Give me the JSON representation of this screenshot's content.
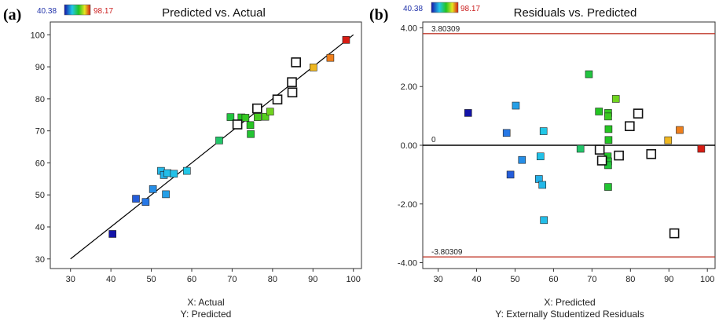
{
  "colors": {
    "low": "#1414a8",
    "high": "#d81c14",
    "refline": "#c0392b",
    "fitline": "#000000"
  },
  "chart_data": [
    {
      "type": "scatter",
      "panel": "(a)",
      "title": "Predicted vs. Actual",
      "xlabel": "X: Actual",
      "ylabel": "Y: Predicted",
      "xlim": [
        25,
        102
      ],
      "ylim": [
        27,
        104
      ],
      "xticks": [
        "30",
        "40",
        "50",
        "60",
        "70",
        "80",
        "90",
        "100"
      ],
      "yticks": [
        "30",
        "40",
        "50",
        "60",
        "70",
        "80",
        "90",
        "100"
      ],
      "color_scale": {
        "min_label": "40.38",
        "max_label": "98.17",
        "min": 40.38,
        "max": 98.17
      },
      "reference_line": {
        "x": [
          30,
          100
        ],
        "y": [
          30,
          100
        ]
      },
      "points": [
        {
          "x": 40.4,
          "y": 37.8,
          "c": 40.38
        },
        {
          "x": 46.2,
          "y": 48.8,
          "c": 46.0
        },
        {
          "x": 48.6,
          "y": 47.8,
          "c": 48.5
        },
        {
          "x": 50.4,
          "y": 51.8,
          "c": 51.0
        },
        {
          "x": 52.4,
          "y": 57.5,
          "c": 56.0
        },
        {
          "x": 53.1,
          "y": 56.2,
          "c": 55.0
        },
        {
          "x": 53.6,
          "y": 50.2,
          "c": 53.0
        },
        {
          "x": 54.0,
          "y": 56.8,
          "c": 56.5
        },
        {
          "x": 55.6,
          "y": 56.6,
          "c": 57.0
        },
        {
          "x": 58.8,
          "y": 57.5,
          "c": 57.8
        },
        {
          "x": 66.8,
          "y": 67.0,
          "c": 67.0
        },
        {
          "x": 69.6,
          "y": 74.3,
          "c": 70.0
        },
        {
          "x": 72.3,
          "y": 74.2,
          "c": 72.3
        },
        {
          "x": 73.3,
          "y": 74.1,
          "c": 73.5
        },
        {
          "x": 74.5,
          "y": 71.8,
          "c": 72.5
        },
        {
          "x": 74.6,
          "y": 69.0,
          "c": 71.0
        },
        {
          "x": 76.3,
          "y": 74.3,
          "c": 75.0
        },
        {
          "x": 78.2,
          "y": 74.4,
          "c": 76.0
        },
        {
          "x": 79.4,
          "y": 76.0,
          "c": 78.0
        },
        {
          "x": 90.1,
          "y": 89.8,
          "c": 90.0
        },
        {
          "x": 94.3,
          "y": 92.8,
          "c": 93.5
        },
        {
          "x": 98.2,
          "y": 98.4,
          "c": 98.17
        },
        {
          "x": 71.3,
          "y": 72.0,
          "c": null
        },
        {
          "x": 76.2,
          "y": 77.0,
          "c": null
        },
        {
          "x": 81.2,
          "y": 79.8,
          "c": null
        },
        {
          "x": 84.8,
          "y": 85.2,
          "c": null
        },
        {
          "x": 84.9,
          "y": 82.0,
          "c": null
        },
        {
          "x": 85.8,
          "y": 91.4,
          "c": null
        }
      ]
    },
    {
      "type": "scatter",
      "panel": "(b)",
      "title": "Residuals vs. Predicted",
      "xlabel": "X: Predicted",
      "ylabel": "Y: Externally Studentized Residuals",
      "xlim": [
        26,
        102
      ],
      "ylim": [
        -4.2,
        4.2
      ],
      "xticks": [
        "30",
        "40",
        "50",
        "60",
        "70",
        "80",
        "90",
        "100"
      ],
      "yticks": [
        "4.00",
        "2.00",
        "0.00",
        "-2.00",
        "-4.00"
      ],
      "ytick_values": [
        4,
        2,
        0,
        -2,
        -4
      ],
      "color_scale": {
        "min_label": "40.38",
        "max_label": "98.17",
        "min": 40.38,
        "max": 98.17
      },
      "limits": [
        {
          "value": 3.80309,
          "label": "3.80309"
        },
        {
          "value": -3.80309,
          "label": "-3.80309"
        }
      ],
      "zero_line": {
        "value": 0,
        "label": "0"
      },
      "points": [
        {
          "x": 37.8,
          "y": 1.1,
          "c": 40.38
        },
        {
          "x": 47.8,
          "y": 0.42,
          "c": 48.5
        },
        {
          "x": 48.8,
          "y": -1.0,
          "c": 46.0
        },
        {
          "x": 50.2,
          "y": 1.35,
          "c": 53.0
        },
        {
          "x": 51.8,
          "y": -0.5,
          "c": 51.0
        },
        {
          "x": 56.2,
          "y": -1.15,
          "c": 55.0
        },
        {
          "x": 56.6,
          "y": -0.38,
          "c": 57.0
        },
        {
          "x": 57.1,
          "y": -1.35,
          "c": 56.0
        },
        {
          "x": 57.4,
          "y": 0.48,
          "c": 57.8
        },
        {
          "x": 57.5,
          "y": -2.55,
          "c": 56.5
        },
        {
          "x": 67.0,
          "y": -0.12,
          "c": 67.0
        },
        {
          "x": 69.2,
          "y": 2.42,
          "c": 70.0
        },
        {
          "x": 71.8,
          "y": 1.15,
          "c": 72.3
        },
        {
          "x": 74.2,
          "y": 1.1,
          "c": 73.5
        },
        {
          "x": 74.2,
          "y": 0.98,
          "c": 74.0
        },
        {
          "x": 74.3,
          "y": 0.55,
          "c": 72.5
        },
        {
          "x": 74.3,
          "y": 0.18,
          "c": 72.0
        },
        {
          "x": 74.1,
          "y": -0.38,
          "c": 71.5
        },
        {
          "x": 74.2,
          "y": -0.55,
          "c": 71.0
        },
        {
          "x": 74.2,
          "y": -0.68,
          "c": 70.5
        },
        {
          "x": 74.2,
          "y": -1.42,
          "c": 71.0
        },
        {
          "x": 76.2,
          "y": 1.58,
          "c": 78.0
        },
        {
          "x": 89.8,
          "y": 0.17,
          "c": 90.0
        },
        {
          "x": 92.8,
          "y": 0.52,
          "c": 93.5
        },
        {
          "x": 98.4,
          "y": -0.12,
          "c": 98.17
        },
        {
          "x": 72.0,
          "y": -0.15,
          "c": null
        },
        {
          "x": 72.6,
          "y": -0.52,
          "c": null
        },
        {
          "x": 77.0,
          "y": -0.35,
          "c": null
        },
        {
          "x": 79.8,
          "y": 0.65,
          "c": null
        },
        {
          "x": 82.0,
          "y": 1.08,
          "c": null
        },
        {
          "x": 85.4,
          "y": -0.3,
          "c": null
        },
        {
          "x": 91.4,
          "y": -3.0,
          "c": null
        }
      ]
    }
  ]
}
